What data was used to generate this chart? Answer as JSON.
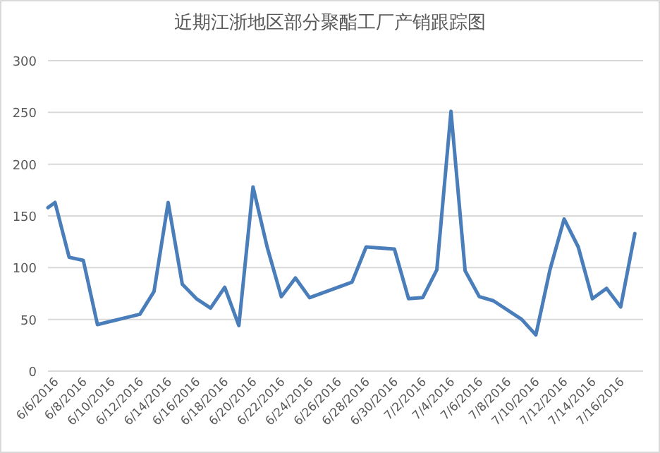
{
  "chart_data": {
    "type": "line",
    "title": "近期江浙地区部分聚酯工厂产销跟踪图",
    "x": [
      "2016-06-05T12:00",
      "2016-06-06",
      "2016-06-07",
      "2016-06-08",
      "2016-06-09",
      "2016-06-12",
      "2016-06-13",
      "2016-06-14",
      "2016-06-15",
      "2016-06-16",
      "2016-06-17",
      "2016-06-18",
      "2016-06-19",
      "2016-06-20",
      "2016-06-21",
      "2016-06-22",
      "2016-06-23",
      "2016-06-24",
      "2016-06-27",
      "2016-06-28",
      "2016-06-30",
      "2016-07-01",
      "2016-07-02",
      "2016-07-03",
      "2016-07-04",
      "2016-07-05",
      "2016-07-06",
      "2016-07-07",
      "2016-07-09",
      "2016-07-10",
      "2016-07-11",
      "2016-07-12",
      "2016-07-13",
      "2016-07-14",
      "2016-07-15",
      "2016-07-16",
      "2016-07-17"
    ],
    "series": [
      {
        "color": "#4a7ebb",
        "values": [
          158,
          163,
          110,
          107,
          45,
          55,
          77,
          163,
          84,
          70,
          61,
          81,
          44,
          178,
          120,
          72,
          90,
          71,
          86,
          120,
          118,
          70,
          71,
          98,
          251,
          97,
          72,
          68,
          50,
          35,
          98,
          147,
          120,
          70,
          80,
          62,
          133
        ]
      }
    ],
    "xlim": [
      "2016-06-05T12:00",
      "2016-07-17T14:00"
    ],
    "xticks": [
      {
        "value": "2016-06-06",
        "label": "6/6/2016"
      },
      {
        "value": "2016-06-08",
        "label": "6/8/2016"
      },
      {
        "value": "2016-06-10",
        "label": "6/10/2016"
      },
      {
        "value": "2016-06-12",
        "label": "6/12/2016"
      },
      {
        "value": "2016-06-14",
        "label": "6/14/2016"
      },
      {
        "value": "2016-06-16",
        "label": "6/16/2016"
      },
      {
        "value": "2016-06-18",
        "label": "6/18/2016"
      },
      {
        "value": "2016-06-20",
        "label": "6/20/2016"
      },
      {
        "value": "2016-06-22",
        "label": "6/22/2016"
      },
      {
        "value": "2016-06-24",
        "label": "6/24/2016"
      },
      {
        "value": "2016-06-26",
        "label": "6/26/2016"
      },
      {
        "value": "2016-06-28",
        "label": "6/28/2016"
      },
      {
        "value": "2016-06-30",
        "label": "6/30/2016"
      },
      {
        "value": "2016-07-02",
        "label": "7/2/2016"
      },
      {
        "value": "2016-07-04",
        "label": "7/4/2016"
      },
      {
        "value": "2016-07-06",
        "label": "7/6/2016"
      },
      {
        "value": "2016-07-08",
        "label": "7/8/2016"
      },
      {
        "value": "2016-07-10",
        "label": "7/10/2016"
      },
      {
        "value": "2016-07-12",
        "label": "7/12/2016"
      },
      {
        "value": "2016-07-14",
        "label": "7/14/2016"
      },
      {
        "value": "2016-07-16",
        "label": "7/16/2016"
      }
    ],
    "ylim": [
      0,
      300
    ],
    "yticks": [
      0,
      50,
      100,
      150,
      200,
      250,
      300
    ],
    "grid": "y",
    "marker": "none",
    "line_style": "solid"
  }
}
